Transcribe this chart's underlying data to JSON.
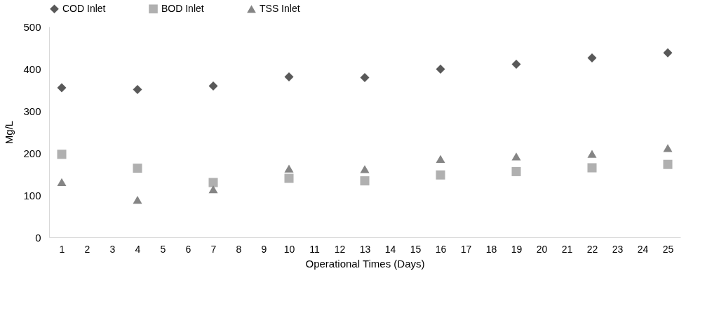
{
  "chart_data": {
    "type": "scatter",
    "xlabel": "Operational Times (Days)",
    "ylabel": "Mg/L",
    "x": [
      1,
      4,
      7,
      10,
      13,
      16,
      19,
      22,
      25
    ],
    "series": [
      {
        "name": "COD Inlet",
        "color": "#595959",
        "marker": "diamond",
        "values": [
          355,
          351,
          359,
          381,
          379,
          399,
          411,
          426,
          438
        ]
      },
      {
        "name": "BOD Inlet",
        "color": "#b0b0b0",
        "marker": "square",
        "values": [
          197,
          164,
          130,
          140,
          134,
          148,
          156,
          165,
          173
        ]
      },
      {
        "name": "TSS Inlet",
        "color": "#858585",
        "marker": "triangle",
        "values": [
          131,
          89,
          114,
          163,
          162,
          186,
          192,
          198,
          212
        ]
      }
    ],
    "xlim": [
      0.5,
      25.5
    ],
    "xticks": [
      1,
      2,
      3,
      4,
      5,
      6,
      7,
      8,
      9,
      10,
      11,
      12,
      13,
      14,
      15,
      16,
      17,
      18,
      19,
      20,
      21,
      22,
      23,
      24,
      25
    ],
    "ylim": [
      0,
      500
    ],
    "yticks": [
      0,
      100,
      200,
      300,
      400,
      500
    ],
    "grid": false,
    "legend": "top"
  }
}
